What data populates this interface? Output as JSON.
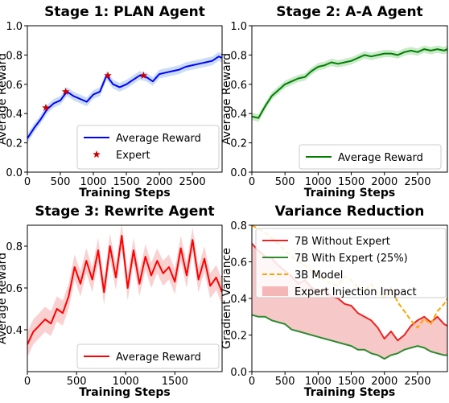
{
  "chart_data": [
    {
      "type": "line",
      "title": "Stage 1: PLAN Agent",
      "xlabel": "Training Steps",
      "ylabel": "Average Reward",
      "xlim": [
        0,
        2950
      ],
      "ylim": [
        0,
        1.0
      ],
      "xticks": [
        "0",
        "500",
        "1000",
        "1500",
        "2000",
        "2500"
      ],
      "yticks": [
        "0.0",
        "0.2",
        "0.4",
        "0.6",
        "0.8",
        "1.0"
      ],
      "legend_position": "lower-right",
      "band": "light blue shaded confidence band",
      "series": [
        {
          "name": "Average Reward",
          "color": "#0000ff",
          "x": [
            0,
            100,
            200,
            300,
            400,
            500,
            600,
            700,
            800,
            900,
            1000,
            1100,
            1200,
            1300,
            1400,
            1500,
            1600,
            1700,
            1800,
            1900,
            2000,
            2100,
            2200,
            2300,
            2400,
            2500,
            2600,
            2700,
            2800,
            2900,
            2950
          ],
          "y": [
            0.23,
            0.3,
            0.36,
            0.43,
            0.47,
            0.49,
            0.55,
            0.52,
            0.5,
            0.48,
            0.53,
            0.55,
            0.66,
            0.6,
            0.58,
            0.6,
            0.63,
            0.66,
            0.65,
            0.62,
            0.67,
            0.68,
            0.69,
            0.7,
            0.72,
            0.73,
            0.74,
            0.75,
            0.76,
            0.79,
            0.78
          ]
        },
        {
          "name": "Expert",
          "color": "#cc0000",
          "marker": "star",
          "x": [
            280,
            580,
            1220,
            1760
          ],
          "y": [
            0.44,
            0.55,
            0.66,
            0.66
          ]
        }
      ]
    },
    {
      "type": "line",
      "title": "Stage 2: A-A Agent",
      "xlabel": "Training Steps",
      "ylabel": "Average Reward",
      "xlim": [
        0,
        2950
      ],
      "ylim": [
        0,
        1.0
      ],
      "xticks": [
        "0",
        "500",
        "1000",
        "1500",
        "2000",
        "2500"
      ],
      "yticks": [
        "0.0",
        "0.2",
        "0.4",
        "0.6",
        "0.8",
        "1.0"
      ],
      "legend_position": "lower-right",
      "band": "light green shaded confidence band",
      "series": [
        {
          "name": "Average Reward",
          "color": "#008000",
          "x": [
            0,
            100,
            200,
            300,
            400,
            500,
            600,
            700,
            800,
            900,
            1000,
            1100,
            1200,
            1300,
            1400,
            1500,
            1600,
            1700,
            1800,
            1900,
            2000,
            2100,
            2200,
            2300,
            2400,
            2500,
            2600,
            2700,
            2800,
            2900,
            2950
          ],
          "y": [
            0.38,
            0.37,
            0.45,
            0.52,
            0.56,
            0.6,
            0.62,
            0.64,
            0.65,
            0.69,
            0.72,
            0.73,
            0.75,
            0.74,
            0.75,
            0.76,
            0.78,
            0.8,
            0.79,
            0.8,
            0.81,
            0.81,
            0.8,
            0.82,
            0.83,
            0.82,
            0.84,
            0.83,
            0.84,
            0.83,
            0.84
          ]
        }
      ]
    },
    {
      "type": "line",
      "title": "Stage 3: Rewrite Agent",
      "xlabel": "Training Steps",
      "ylabel": "Average Reward",
      "xlim": [
        0,
        1980
      ],
      "ylim": [
        0.2,
        0.9
      ],
      "xticks": [
        "0",
        "500",
        "1000",
        "1500"
      ],
      "yticks": [
        "0.4",
        "0.6",
        "0.8"
      ],
      "legend_position": "lower-right",
      "band": "light red shaded confidence band",
      "series": [
        {
          "name": "Average Reward",
          "color": "#ff0000",
          "x": [
            0,
            60,
            120,
            180,
            240,
            300,
            360,
            420,
            480,
            540,
            600,
            660,
            720,
            780,
            840,
            900,
            960,
            1020,
            1080,
            1140,
            1200,
            1260,
            1320,
            1380,
            1440,
            1500,
            1560,
            1620,
            1680,
            1740,
            1800,
            1860,
            1920,
            1980
          ],
          "y": [
            0.33,
            0.39,
            0.42,
            0.45,
            0.43,
            0.5,
            0.48,
            0.56,
            0.7,
            0.62,
            0.73,
            0.64,
            0.78,
            0.58,
            0.8,
            0.65,
            0.85,
            0.6,
            0.78,
            0.62,
            0.75,
            0.66,
            0.73,
            0.67,
            0.7,
            0.63,
            0.79,
            0.66,
            0.83,
            0.64,
            0.74,
            0.61,
            0.65,
            0.58
          ]
        }
      ]
    },
    {
      "type": "line",
      "title": "Variance Reduction",
      "xlabel": "Training Steps",
      "ylabel": "Gradient Variance",
      "xlim": [
        0,
        2950
      ],
      "ylim": [
        0,
        0.8
      ],
      "xticks": [
        "0",
        "500",
        "1000",
        "1500",
        "2000",
        "2500"
      ],
      "yticks": [
        "0.0",
        "0.2",
        "0.4",
        "0.6",
        "0.8"
      ],
      "legend_position": "upper-center",
      "fill_between": {
        "name": "Expert Injection Impact",
        "color": "#f4b6b6",
        "between": [
          "7B Without Expert",
          "7B With Expert (25%)"
        ]
      },
      "series": [
        {
          "name": "7B Without Expert",
          "color": "#ee2222",
          "x": [
            0,
            100,
            200,
            300,
            400,
            500,
            600,
            700,
            800,
            900,
            1000,
            1100,
            1200,
            1300,
            1400,
            1500,
            1600,
            1700,
            1800,
            1900,
            2000,
            2100,
            2200,
            2300,
            2400,
            2500,
            2600,
            2700,
            2800,
            2900,
            2950
          ],
          "y": [
            0.7,
            0.66,
            0.63,
            0.62,
            0.58,
            0.55,
            0.52,
            0.48,
            0.5,
            0.46,
            0.44,
            0.45,
            0.41,
            0.4,
            0.37,
            0.36,
            0.32,
            0.3,
            0.28,
            0.24,
            0.18,
            0.22,
            0.17,
            0.2,
            0.25,
            0.28,
            0.3,
            0.27,
            0.3,
            0.26,
            0.25
          ]
        },
        {
          "name": "7B With Expert (25%)",
          "color": "#2e8b2e",
          "x": [
            0,
            100,
            200,
            300,
            400,
            500,
            600,
            700,
            800,
            900,
            1000,
            1100,
            1200,
            1300,
            1400,
            1500,
            1600,
            1700,
            1800,
            1900,
            2000,
            2100,
            2200,
            2300,
            2400,
            2500,
            2600,
            2700,
            2800,
            2900,
            2950
          ],
          "y": [
            0.31,
            0.3,
            0.3,
            0.28,
            0.27,
            0.26,
            0.23,
            0.22,
            0.21,
            0.2,
            0.19,
            0.18,
            0.17,
            0.16,
            0.15,
            0.14,
            0.12,
            0.12,
            0.1,
            0.09,
            0.07,
            0.09,
            0.1,
            0.12,
            0.13,
            0.14,
            0.13,
            0.11,
            0.1,
            0.09,
            0.09
          ]
        },
        {
          "name": "3B Model",
          "color": "#ffa500",
          "dash": "dashed",
          "x": [
            0,
            100,
            200,
            300,
            400,
            500,
            600,
            700,
            800,
            900,
            1000,
            1100,
            1200,
            1300,
            1400,
            1500,
            1600,
            1700,
            1800,
            1900,
            2000,
            2100,
            2200,
            2300,
            2400,
            2500,
            2600,
            2700,
            2800,
            2900,
            2950
          ],
          "y": [
            0.8,
            0.78,
            0.76,
            0.73,
            0.7,
            0.66,
            0.63,
            0.6,
            0.58,
            0.55,
            0.53,
            0.5,
            0.48,
            0.47,
            0.52,
            0.5,
            0.46,
            0.44,
            0.48,
            0.43,
            0.4,
            0.46,
            0.38,
            0.33,
            0.28,
            0.24,
            0.29,
            0.26,
            0.33,
            0.37,
            0.4
          ]
        }
      ]
    }
  ]
}
